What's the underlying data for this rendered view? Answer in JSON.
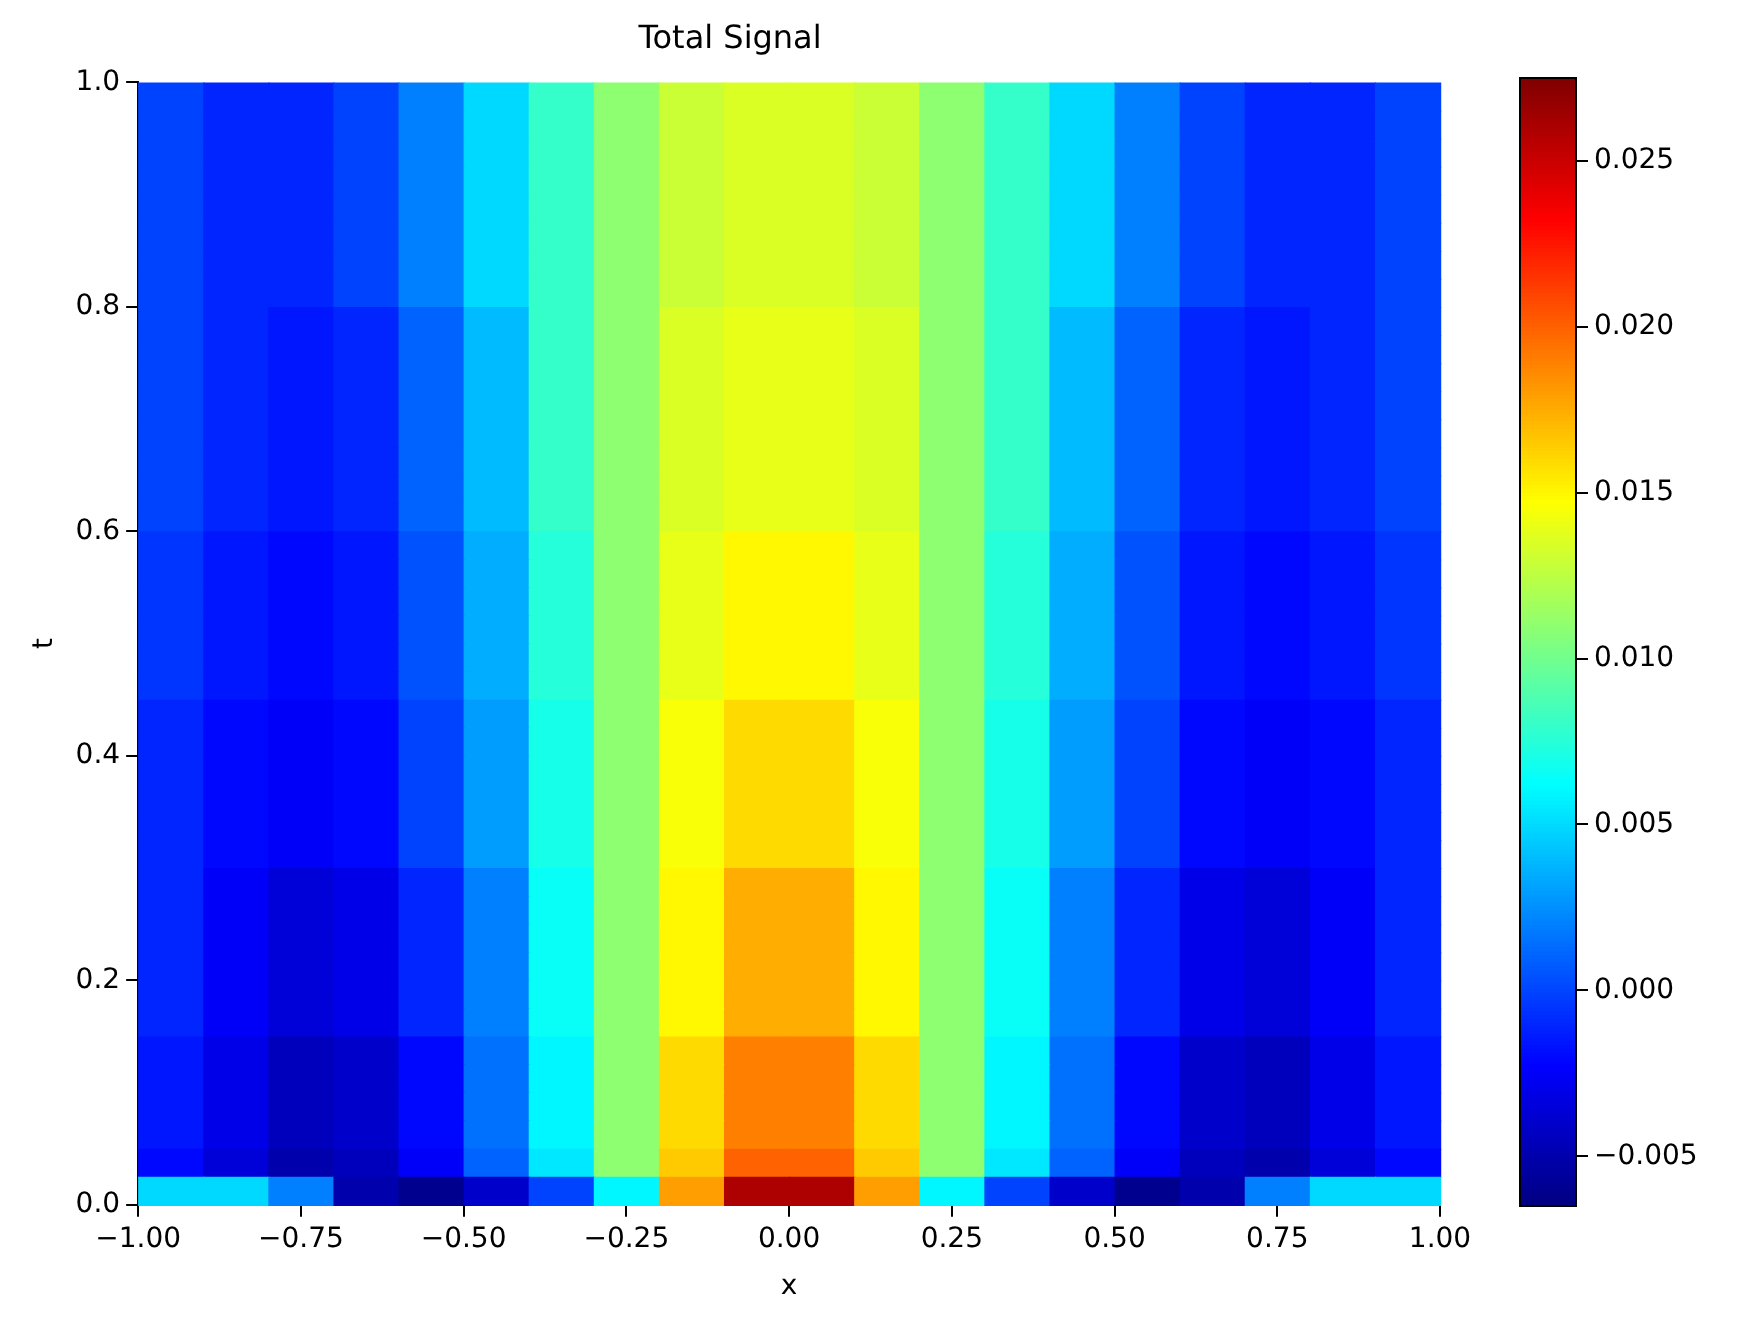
{
  "chart_data": {
    "type": "heatmap",
    "title": "Total Signal",
    "xlabel": "x",
    "ylabel": "t",
    "xlim": [
      -1,
      1
    ],
    "ylim": [
      0,
      1
    ],
    "xticks": [
      {
        "value": -1,
        "label": "−1.00"
      },
      {
        "value": -0.75,
        "label": "−0.75"
      },
      {
        "value": -0.5,
        "label": "−0.50"
      },
      {
        "value": -0.25,
        "label": "−0.25"
      },
      {
        "value": 0,
        "label": "0.00"
      },
      {
        "value": 0.25,
        "label": "0.25"
      },
      {
        "value": 0.5,
        "label": "0.50"
      },
      {
        "value": 0.75,
        "label": "0.75"
      },
      {
        "value": 1,
        "label": "1.00"
      }
    ],
    "yticks": [
      {
        "value": 0,
        "label": "0.0"
      },
      {
        "value": 0.2,
        "label": "0.2"
      },
      {
        "value": 0.4,
        "label": "0.4"
      },
      {
        "value": 0.6,
        "label": "0.6"
      },
      {
        "value": 0.8,
        "label": "0.8"
      },
      {
        "value": 1,
        "label": "1.0"
      }
    ],
    "clim": [
      -0.0065,
      0.0275
    ],
    "cticks": [
      {
        "value": -0.005,
        "label": "−0.005"
      },
      {
        "value": 0,
        "label": "0.000"
      },
      {
        "value": 0.005,
        "label": "0.005"
      },
      {
        "value": 0.01,
        "label": "0.010"
      },
      {
        "value": 0.015,
        "label": "0.015"
      },
      {
        "value": 0.02,
        "label": "0.020"
      },
      {
        "value": 0.025,
        "label": "0.025"
      }
    ],
    "cells": [
      [
        0.0,
        -0.001,
        -0.001,
        0.0,
        0.002,
        0.005,
        0.008,
        0.011,
        0.013,
        0.0135,
        0.0135,
        0.013,
        0.011,
        0.008,
        0.005,
        0.002,
        0.0,
        -0.001,
        -0.001,
        0.0
      ],
      [
        0.0,
        -0.001,
        -0.001,
        0.0,
        0.002,
        0.005,
        0.008,
        0.011,
        0.013,
        0.0135,
        0.0135,
        0.013,
        0.011,
        0.008,
        0.005,
        0.002,
        0.0,
        -0.001,
        -0.001,
        0.0
      ],
      [
        0.0,
        -0.001,
        -0.001,
        0.0,
        0.002,
        0.005,
        0.008,
        0.011,
        0.013,
        0.0135,
        0.0135,
        0.013,
        0.011,
        0.008,
        0.005,
        0.002,
        0.0,
        -0.001,
        -0.001,
        0.0
      ],
      [
        0.0,
        -0.001,
        -0.001,
        0.0,
        0.002,
        0.005,
        0.008,
        0.011,
        0.013,
        0.0135,
        0.0135,
        0.013,
        0.011,
        0.008,
        0.005,
        0.002,
        0.0,
        -0.001,
        -0.001,
        0.0
      ],
      [
        0.0,
        -0.001,
        -0.001,
        0.0,
        0.002,
        0.005,
        0.008,
        0.011,
        0.013,
        0.0135,
        0.0135,
        0.013,
        0.011,
        0.008,
        0.005,
        0.002,
        0.0,
        -0.001,
        -0.001,
        0.0
      ],
      [
        0.0,
        -0.001,
        -0.001,
        0.0,
        0.002,
        0.005,
        0.008,
        0.011,
        0.013,
        0.0135,
        0.0135,
        0.013,
        0.011,
        0.008,
        0.005,
        0.002,
        0.0,
        -0.001,
        -0.001,
        0.0
      ],
      [
        0.0,
        -0.001,
        -0.001,
        0.0,
        0.002,
        0.005,
        0.008,
        0.011,
        0.013,
        0.0135,
        0.0135,
        0.013,
        0.011,
        0.008,
        0.005,
        0.002,
        0.0,
        -0.001,
        -0.001,
        0.0
      ],
      [
        0.0,
        -0.001,
        -0.001,
        0.0,
        0.002,
        0.005,
        0.008,
        0.011,
        0.013,
        0.0135,
        0.0135,
        0.013,
        0.011,
        0.008,
        0.005,
        0.002,
        0.0,
        -0.001,
        -0.001,
        0.0
      ],
      [
        0.0,
        -0.001,
        -0.0015,
        -0.001,
        0.001,
        0.004,
        0.008,
        0.011,
        0.0135,
        0.014,
        0.014,
        0.0135,
        0.011,
        0.008,
        0.004,
        0.001,
        -0.001,
        -0.0015,
        -0.001,
        0.0
      ],
      [
        0.0,
        -0.001,
        -0.0015,
        -0.001,
        0.001,
        0.004,
        0.008,
        0.011,
        0.0135,
        0.014,
        0.014,
        0.0135,
        0.011,
        0.008,
        0.004,
        0.001,
        -0.001,
        -0.0015,
        -0.001,
        0.0
      ],
      [
        0.0,
        -0.001,
        -0.0015,
        -0.001,
        0.001,
        0.004,
        0.008,
        0.011,
        0.0135,
        0.014,
        0.014,
        0.0135,
        0.011,
        0.008,
        0.004,
        0.001,
        -0.001,
        -0.0015,
        -0.001,
        0.0
      ],
      [
        0.0,
        -0.001,
        -0.0015,
        -0.001,
        0.001,
        0.004,
        0.008,
        0.011,
        0.0135,
        0.014,
        0.014,
        0.0135,
        0.011,
        0.008,
        0.004,
        0.001,
        -0.001,
        -0.0015,
        -0.001,
        0.0
      ],
      [
        0.0,
        -0.001,
        -0.0015,
        -0.001,
        0.001,
        0.004,
        0.008,
        0.011,
        0.0135,
        0.014,
        0.014,
        0.0135,
        0.011,
        0.008,
        0.004,
        0.001,
        -0.001,
        -0.0015,
        -0.001,
        0.0
      ],
      [
        0.0,
        -0.001,
        -0.0015,
        -0.001,
        0.001,
        0.004,
        0.008,
        0.011,
        0.0135,
        0.014,
        0.014,
        0.0135,
        0.011,
        0.008,
        0.004,
        0.001,
        -0.001,
        -0.0015,
        -0.001,
        0.0
      ],
      [
        0.0,
        -0.001,
        -0.0015,
        -0.001,
        0.001,
        0.004,
        0.008,
        0.011,
        0.0135,
        0.014,
        0.014,
        0.0135,
        0.011,
        0.008,
        0.004,
        0.001,
        -0.001,
        -0.0015,
        -0.001,
        0.0
      ],
      [
        0.0,
        -0.001,
        -0.0015,
        -0.001,
        0.001,
        0.004,
        0.008,
        0.011,
        0.0135,
        0.014,
        0.014,
        0.0135,
        0.011,
        0.008,
        0.004,
        0.001,
        -0.001,
        -0.0015,
        -0.001,
        0.0
      ],
      [
        -0.0005,
        -0.0015,
        -0.002,
        -0.0015,
        0.0005,
        0.0035,
        0.0075,
        0.011,
        0.014,
        0.015,
        0.015,
        0.014,
        0.011,
        0.0075,
        0.0035,
        0.0005,
        -0.0015,
        -0.002,
        -0.0015,
        -0.0005
      ],
      [
        -0.0005,
        -0.0015,
        -0.002,
        -0.0015,
        0.0005,
        0.0035,
        0.0075,
        0.011,
        0.014,
        0.015,
        0.015,
        0.014,
        0.011,
        0.0075,
        0.0035,
        0.0005,
        -0.0015,
        -0.002,
        -0.0015,
        -0.0005
      ],
      [
        -0.0005,
        -0.0015,
        -0.002,
        -0.0015,
        0.0005,
        0.0035,
        0.0075,
        0.011,
        0.014,
        0.015,
        0.015,
        0.014,
        0.011,
        0.0075,
        0.0035,
        0.0005,
        -0.0015,
        -0.002,
        -0.0015,
        -0.0005
      ],
      [
        -0.0005,
        -0.0015,
        -0.002,
        -0.0015,
        0.0005,
        0.0035,
        0.0075,
        0.011,
        0.014,
        0.015,
        0.015,
        0.014,
        0.011,
        0.0075,
        0.0035,
        0.0005,
        -0.0015,
        -0.002,
        -0.0015,
        -0.0005
      ],
      [
        -0.0005,
        -0.0015,
        -0.002,
        -0.0015,
        0.0005,
        0.0035,
        0.0075,
        0.011,
        0.014,
        0.015,
        0.015,
        0.014,
        0.011,
        0.0075,
        0.0035,
        0.0005,
        -0.0015,
        -0.002,
        -0.0015,
        -0.0005
      ],
      [
        -0.0005,
        -0.0015,
        -0.002,
        -0.0015,
        0.0005,
        0.0035,
        0.0075,
        0.011,
        0.014,
        0.015,
        0.015,
        0.014,
        0.011,
        0.0075,
        0.0035,
        0.0005,
        -0.0015,
        -0.002,
        -0.0015,
        -0.0005
      ],
      [
        -0.001,
        -0.002,
        -0.0025,
        -0.002,
        0.0,
        0.003,
        0.007,
        0.011,
        0.0145,
        0.016,
        0.016,
        0.0145,
        0.011,
        0.007,
        0.003,
        0.0,
        -0.002,
        -0.0025,
        -0.002,
        -0.001
      ],
      [
        -0.001,
        -0.002,
        -0.0025,
        -0.002,
        0.0,
        0.003,
        0.007,
        0.011,
        0.0145,
        0.016,
        0.016,
        0.0145,
        0.011,
        0.007,
        0.003,
        0.0,
        -0.002,
        -0.0025,
        -0.002,
        -0.001
      ],
      [
        -0.001,
        -0.002,
        -0.0025,
        -0.002,
        0.0,
        0.003,
        0.007,
        0.011,
        0.0145,
        0.016,
        0.016,
        0.0145,
        0.011,
        0.007,
        0.003,
        0.0,
        -0.002,
        -0.0025,
        -0.002,
        -0.001
      ],
      [
        -0.001,
        -0.002,
        -0.0025,
        -0.002,
        0.0,
        0.003,
        0.007,
        0.011,
        0.0145,
        0.016,
        0.016,
        0.0145,
        0.011,
        0.007,
        0.003,
        0.0,
        -0.002,
        -0.0025,
        -0.002,
        -0.001
      ],
      [
        -0.001,
        -0.002,
        -0.0025,
        -0.002,
        0.0,
        0.003,
        0.007,
        0.011,
        0.0145,
        0.016,
        0.016,
        0.0145,
        0.011,
        0.007,
        0.003,
        0.0,
        -0.002,
        -0.0025,
        -0.002,
        -0.001
      ],
      [
        -0.001,
        -0.002,
        -0.0025,
        -0.002,
        0.0,
        0.003,
        0.007,
        0.011,
        0.0145,
        0.016,
        0.016,
        0.0145,
        0.011,
        0.007,
        0.003,
        0.0,
        -0.002,
        -0.0025,
        -0.002,
        -0.001
      ],
      [
        -0.001,
        -0.0025,
        -0.0035,
        -0.003,
        -0.001,
        0.002,
        0.0065,
        0.011,
        0.015,
        0.0175,
        0.0175,
        0.015,
        0.011,
        0.0065,
        0.002,
        -0.001,
        -0.003,
        -0.0035,
        -0.0025,
        -0.001
      ],
      [
        -0.001,
        -0.0025,
        -0.0035,
        -0.003,
        -0.001,
        0.002,
        0.0065,
        0.011,
        0.015,
        0.0175,
        0.0175,
        0.015,
        0.011,
        0.0065,
        0.002,
        -0.001,
        -0.003,
        -0.0035,
        -0.0025,
        -0.001
      ],
      [
        -0.001,
        -0.0025,
        -0.0035,
        -0.003,
        -0.001,
        0.002,
        0.0065,
        0.011,
        0.015,
        0.0175,
        0.0175,
        0.015,
        0.011,
        0.0065,
        0.002,
        -0.001,
        -0.003,
        -0.0035,
        -0.0025,
        -0.001
      ],
      [
        -0.001,
        -0.0025,
        -0.0035,
        -0.003,
        -0.001,
        0.002,
        0.0065,
        0.011,
        0.015,
        0.0175,
        0.0175,
        0.015,
        0.011,
        0.0065,
        0.002,
        -0.001,
        -0.003,
        -0.0035,
        -0.0025,
        -0.001
      ],
      [
        -0.001,
        -0.0025,
        -0.0035,
        -0.003,
        -0.001,
        0.002,
        0.0065,
        0.011,
        0.015,
        0.0175,
        0.0175,
        0.015,
        0.011,
        0.0065,
        0.002,
        -0.001,
        -0.003,
        -0.0035,
        -0.0025,
        -0.001
      ],
      [
        -0.001,
        -0.0025,
        -0.0035,
        -0.003,
        -0.001,
        0.002,
        0.0065,
        0.011,
        0.015,
        0.0175,
        0.0175,
        0.015,
        0.011,
        0.0065,
        0.002,
        -0.001,
        -0.003,
        -0.0035,
        -0.0025,
        -0.001
      ],
      [
        -0.0015,
        -0.003,
        -0.0045,
        -0.004,
        -0.002,
        0.0015,
        0.006,
        0.011,
        0.016,
        0.019,
        0.019,
        0.016,
        0.011,
        0.006,
        0.0015,
        -0.002,
        -0.004,
        -0.0045,
        -0.003,
        -0.0015
      ],
      [
        -0.0015,
        -0.003,
        -0.0045,
        -0.004,
        -0.002,
        0.0015,
        0.006,
        0.011,
        0.016,
        0.019,
        0.019,
        0.016,
        0.011,
        0.006,
        0.0015,
        -0.002,
        -0.004,
        -0.0045,
        -0.003,
        -0.0015
      ],
      [
        -0.0015,
        -0.003,
        -0.0045,
        -0.004,
        -0.002,
        0.0015,
        0.006,
        0.011,
        0.016,
        0.019,
        0.019,
        0.016,
        0.011,
        0.006,
        0.0015,
        -0.002,
        -0.004,
        -0.0045,
        -0.003,
        -0.0015
      ],
      [
        -0.0015,
        -0.003,
        -0.0045,
        -0.004,
        -0.002,
        0.0015,
        0.006,
        0.011,
        0.016,
        0.019,
        0.019,
        0.016,
        0.011,
        0.006,
        0.0015,
        -0.002,
        -0.004,
        -0.0045,
        -0.003,
        -0.0015
      ],
      [
        -0.002,
        -0.0035,
        -0.005,
        -0.0045,
        -0.0025,
        0.001,
        0.0055,
        0.011,
        0.0165,
        0.02,
        0.02,
        0.0165,
        0.011,
        0.0055,
        0.001,
        -0.0025,
        -0.0045,
        -0.005,
        -0.0035,
        -0.002
      ],
      [
        0.005,
        0.005,
        0.002,
        -0.005,
        -0.006,
        -0.004,
        0.0,
        0.006,
        0.018,
        0.026,
        0.026,
        0.018,
        0.006,
        0.0,
        -0.004,
        -0.006,
        -0.005,
        0.002,
        0.005,
        0.005
      ]
    ]
  }
}
